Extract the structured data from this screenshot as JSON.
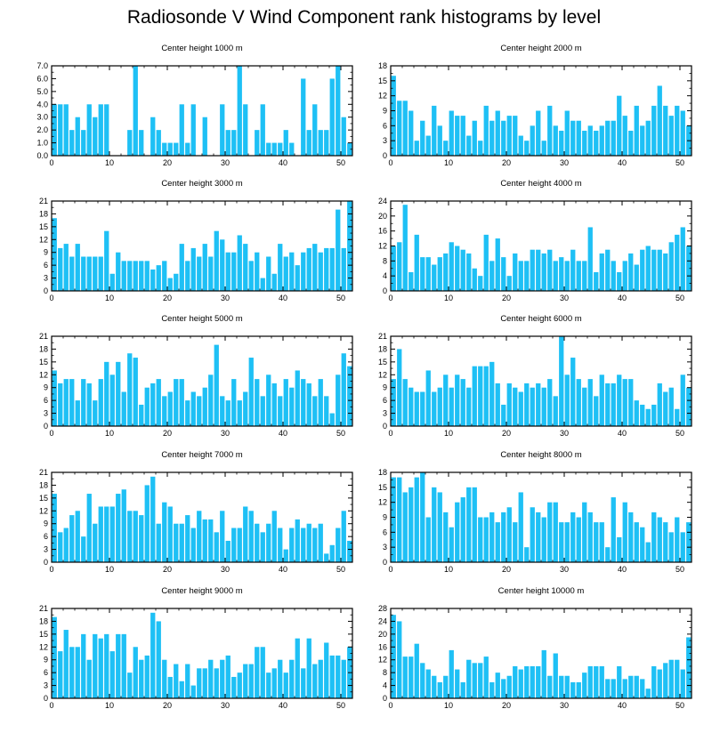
{
  "title": "Radiosonde V Wind Component rank histograms by level",
  "colors": {
    "bar": "#1ec0f5",
    "axis": "#000000"
  },
  "chart_data": [
    {
      "type": "bar",
      "title": "Center height 1000 m",
      "xlim": [
        0,
        52
      ],
      "xticks": [
        0,
        10,
        20,
        30,
        40,
        50
      ],
      "ylim": [
        0,
        7
      ],
      "yticks": [
        "0.0",
        "1.0",
        "2.0",
        "3.0",
        "4.0",
        "5.0",
        "6.0",
        "7.0"
      ],
      "values": [
        4,
        4,
        4,
        2,
        3,
        2,
        4,
        3,
        4,
        4,
        0,
        0,
        0,
        2,
        7,
        2,
        0,
        3,
        2,
        1,
        1,
        1,
        4,
        1,
        4,
        0,
        3,
        0,
        0,
        4,
        2,
        2,
        7,
        4,
        0,
        2,
        4,
        1,
        1,
        1,
        2,
        1,
        0,
        6,
        2,
        4,
        2,
        2,
        6,
        7,
        3,
        1
      ]
    },
    {
      "type": "bar",
      "title": "Center height 2000 m",
      "xlim": [
        0,
        52
      ],
      "xticks": [
        0,
        10,
        20,
        30,
        40,
        50
      ],
      "ylim": [
        0,
        18
      ],
      "yticks": [
        "0",
        "3",
        "6",
        "9",
        "12",
        "15",
        "18"
      ],
      "values": [
        16,
        11,
        11,
        9,
        3,
        7,
        4,
        10,
        6,
        3,
        9,
        8,
        8,
        4,
        7,
        3,
        10,
        7,
        9,
        7,
        8,
        8,
        4,
        3,
        6,
        9,
        3,
        10,
        6,
        5,
        9,
        7,
        7,
        5,
        6,
        5,
        6,
        7,
        7,
        12,
        8,
        5,
        10,
        6,
        7,
        10,
        14,
        10,
        8,
        10,
        9,
        6
      ]
    },
    {
      "type": "bar",
      "title": "Center height 3000 m",
      "xlim": [
        0,
        52
      ],
      "xticks": [
        0,
        10,
        20,
        30,
        40,
        50
      ],
      "ylim": [
        0,
        21
      ],
      "yticks": [
        "0",
        "3",
        "6",
        "9",
        "12",
        "15",
        "18",
        "21"
      ],
      "values": [
        17,
        10,
        11,
        8,
        11,
        8,
        8,
        8,
        8,
        14,
        4,
        9,
        7,
        7,
        7,
        7,
        7,
        5,
        6,
        7,
        3,
        4,
        11,
        7,
        10,
        8,
        11,
        8,
        14,
        12,
        9,
        9,
        13,
        11,
        7,
        9,
        3,
        8,
        4,
        11,
        8,
        9,
        6,
        9,
        10,
        11,
        9,
        10,
        10,
        19,
        10,
        21
      ]
    },
    {
      "type": "bar",
      "title": "Center height 4000 m",
      "xlim": [
        0,
        52
      ],
      "xticks": [
        0,
        10,
        20,
        30,
        40,
        50
      ],
      "ylim": [
        0,
        24
      ],
      "yticks": [
        "0",
        "4",
        "8",
        "12",
        "16",
        "20",
        "24"
      ],
      "values": [
        12,
        13,
        23,
        5,
        15,
        9,
        9,
        7,
        9,
        10,
        13,
        12,
        11,
        10,
        6,
        4,
        15,
        8,
        14,
        9,
        4,
        10,
        8,
        8,
        11,
        11,
        10,
        11,
        8,
        9,
        8,
        11,
        8,
        8,
        17,
        5,
        10,
        11,
        8,
        5,
        8,
        10,
        7,
        11,
        12,
        11,
        11,
        10,
        13,
        15,
        17,
        12
      ]
    },
    {
      "type": "bar",
      "title": "Center height 5000 m",
      "xlim": [
        0,
        52
      ],
      "xticks": [
        0,
        10,
        20,
        30,
        40,
        50
      ],
      "ylim": [
        0,
        21
      ],
      "yticks": [
        "0",
        "3",
        "6",
        "9",
        "12",
        "15",
        "18",
        "21"
      ],
      "values": [
        13,
        10,
        11,
        11,
        6,
        11,
        10,
        6,
        11,
        15,
        12,
        15,
        8,
        17,
        16,
        5,
        9,
        10,
        11,
        7,
        8,
        11,
        11,
        6,
        8,
        7,
        9,
        12,
        19,
        7,
        6,
        11,
        6,
        8,
        16,
        11,
        7,
        12,
        10,
        7,
        11,
        9,
        13,
        11,
        10,
        7,
        11,
        7,
        3,
        12,
        17,
        14
      ]
    },
    {
      "type": "bar",
      "title": "Center height 6000 m",
      "xlim": [
        0,
        52
      ],
      "xticks": [
        0,
        10,
        20,
        30,
        40,
        50
      ],
      "ylim": [
        0,
        21
      ],
      "yticks": [
        "0",
        "3",
        "6",
        "9",
        "12",
        "15",
        "18",
        "21"
      ],
      "values": [
        11,
        18,
        11,
        9,
        8,
        8,
        13,
        8,
        9,
        12,
        9,
        12,
        11,
        9,
        14,
        14,
        14,
        15,
        10,
        5,
        10,
        9,
        8,
        10,
        9,
        10,
        9,
        11,
        7,
        21,
        12,
        16,
        11,
        9,
        11,
        7,
        12,
        10,
        10,
        12,
        11,
        11,
        6,
        5,
        4,
        5,
        10,
        8,
        9,
        4,
        12,
        9
      ]
    },
    {
      "type": "bar",
      "title": "Center height 7000 m",
      "xlim": [
        0,
        52
      ],
      "xticks": [
        0,
        10,
        20,
        30,
        40,
        50
      ],
      "ylim": [
        0,
        21
      ],
      "yticks": [
        "0",
        "3",
        "6",
        "9",
        "12",
        "15",
        "18",
        "21"
      ],
      "values": [
        16,
        7,
        8,
        11,
        12,
        6,
        16,
        9,
        13,
        13,
        13,
        16,
        17,
        12,
        12,
        11,
        18,
        20,
        9,
        14,
        13,
        9,
        9,
        11,
        8,
        12,
        10,
        10,
        7,
        12,
        5,
        8,
        8,
        13,
        12,
        9,
        7,
        9,
        12,
        8,
        3,
        8,
        10,
        8,
        9,
        8,
        9,
        2,
        4,
        8,
        12,
        5
      ]
    },
    {
      "type": "bar",
      "title": "Center height 8000 m",
      "xlim": [
        0,
        52
      ],
      "xticks": [
        0,
        10,
        20,
        30,
        40,
        50
      ],
      "ylim": [
        0,
        18
      ],
      "yticks": [
        "0",
        "3",
        "6",
        "9",
        "12",
        "15",
        "18"
      ],
      "values": [
        17,
        17,
        14,
        15,
        17,
        18,
        9,
        15,
        14,
        10,
        7,
        12,
        13,
        15,
        15,
        9,
        9,
        10,
        8,
        10,
        11,
        8,
        14,
        3,
        11,
        10,
        9,
        12,
        12,
        8,
        8,
        10,
        9,
        12,
        10,
        8,
        8,
        3,
        13,
        5,
        12,
        10,
        8,
        7,
        4,
        10,
        9,
        8,
        6,
        9,
        6,
        8
      ]
    },
    {
      "type": "bar",
      "title": "Center height 9000 m",
      "xlim": [
        0,
        52
      ],
      "xticks": [
        0,
        10,
        20,
        30,
        40,
        50
      ],
      "ylim": [
        0,
        21
      ],
      "yticks": [
        "0",
        "3",
        "6",
        "9",
        "12",
        "15",
        "18",
        "21"
      ],
      "values": [
        19,
        11,
        16,
        12,
        12,
        15,
        9,
        15,
        14,
        15,
        11,
        15,
        15,
        6,
        12,
        9,
        10,
        20,
        18,
        9,
        5,
        8,
        4,
        8,
        3,
        7,
        7,
        9,
        7,
        9,
        10,
        5,
        6,
        8,
        8,
        12,
        12,
        6,
        7,
        9,
        6,
        9,
        14,
        7,
        14,
        8,
        9,
        13,
        10,
        10,
        9,
        12
      ]
    },
    {
      "type": "bar",
      "title": "Center height 10000 m",
      "xlim": [
        0,
        52
      ],
      "xticks": [
        0,
        10,
        20,
        30,
        40,
        50
      ],
      "ylim": [
        0,
        28
      ],
      "yticks": [
        "0",
        "4",
        "8",
        "12",
        "16",
        "20",
        "24",
        "28"
      ],
      "values": [
        26,
        24,
        13,
        13,
        17,
        11,
        9,
        7,
        5,
        7,
        15,
        9,
        5,
        12,
        11,
        11,
        13,
        5,
        8,
        6,
        7,
        10,
        9,
        10,
        10,
        10,
        15,
        7,
        14,
        7,
        7,
        5,
        5,
        8,
        10,
        10,
        10,
        6,
        6,
        10,
        6,
        7,
        7,
        6,
        3,
        10,
        9,
        11,
        12,
        12,
        9,
        19
      ]
    }
  ]
}
